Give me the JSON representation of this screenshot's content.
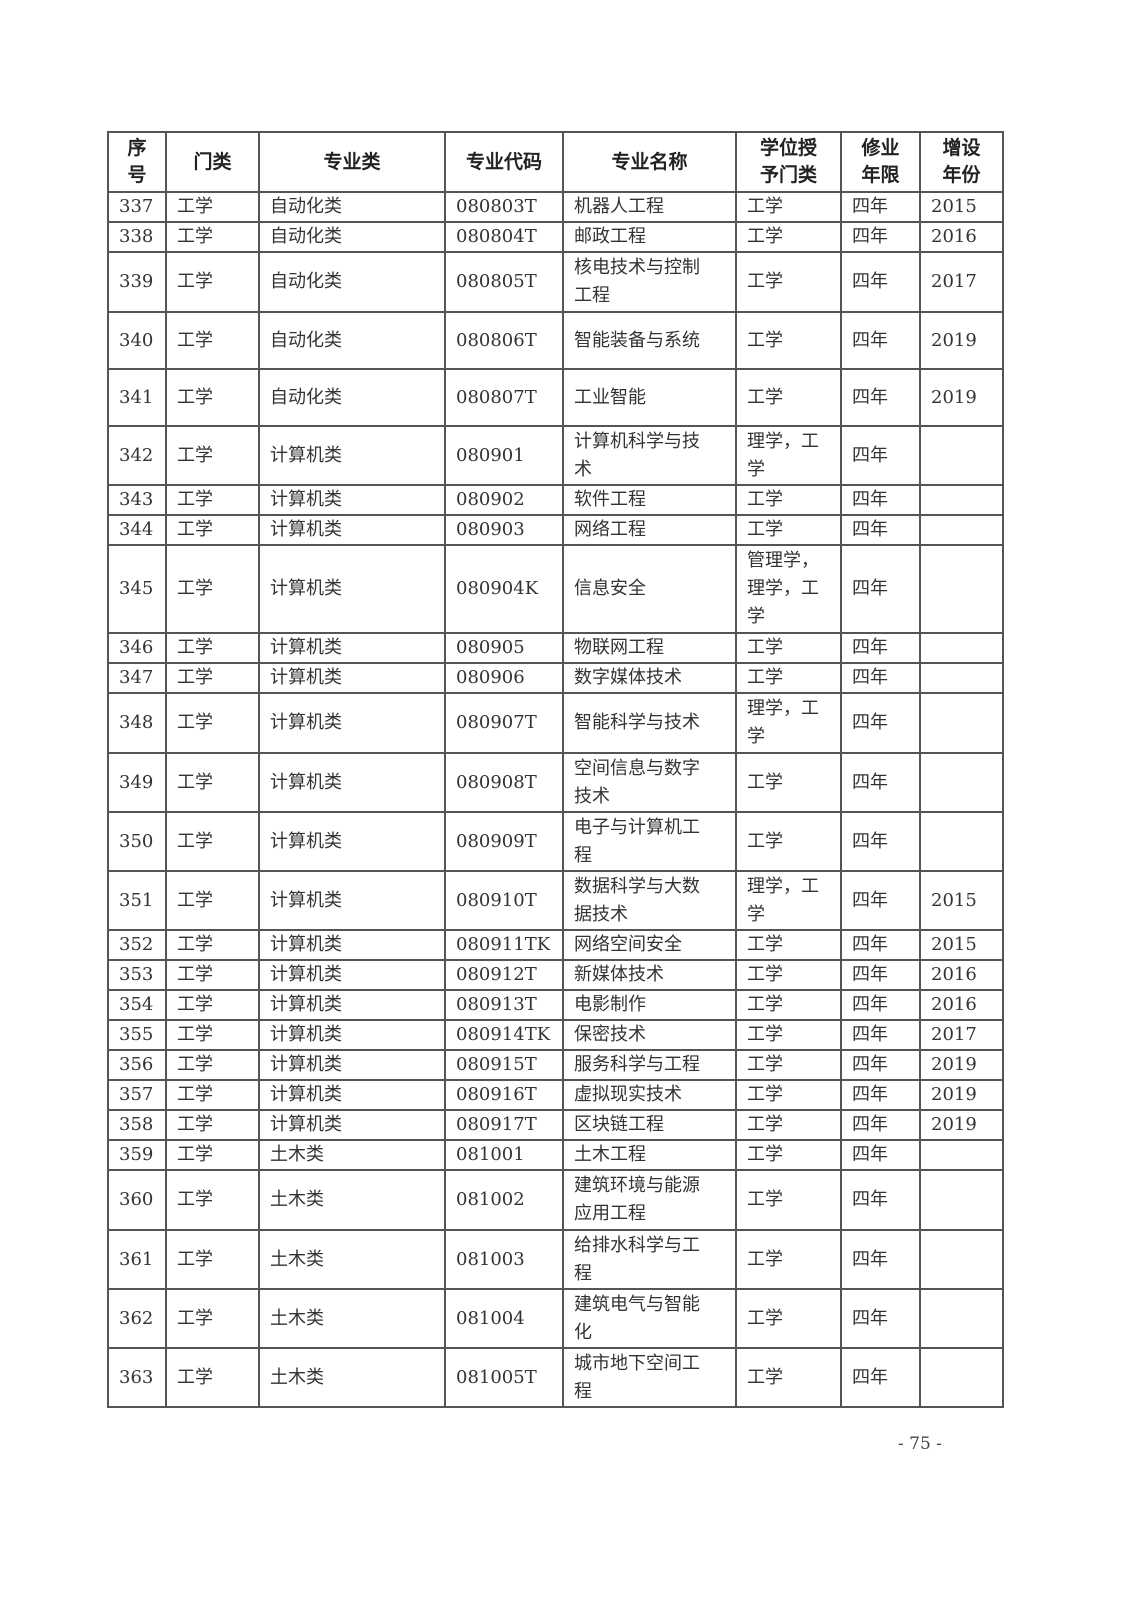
{
  "headers": [
    "序\n号",
    "门类",
    "专业类",
    "专业代码",
    "专业名称",
    "学位授\n予门类",
    "修业\n年限",
    "增设\n年份"
  ],
  "rows": [
    [
      "337",
      "工学",
      "自动化类",
      "080803T",
      "机器人工程",
      "工学",
      "四年",
      "2015"
    ],
    [
      "338",
      "工学",
      "自动化类",
      "080804T",
      "邮政工程",
      "工学",
      "四年",
      "2016"
    ],
    [
      "339",
      "工学",
      "自动化类",
      "080805T",
      "核电技术与控制\n工程",
      "工学",
      "四年",
      "2017"
    ],
    [
      "340",
      "工学",
      "自动化类",
      "080806T",
      "智能装备与系统",
      "工学",
      "四年",
      "2019"
    ],
    [
      "341",
      "工学",
      "自动化类",
      "080807T",
      "工业智能",
      "工学",
      "四年",
      "2019"
    ],
    [
      "342",
      "工学",
      "计算机类",
      "080901",
      "计算机科学与技\n术",
      "理学，工\n学",
      "四年",
      ""
    ],
    [
      "343",
      "工学",
      "计算机类",
      "080902",
      "软件工程",
      "工学",
      "四年",
      ""
    ],
    [
      "344",
      "工学",
      "计算机类",
      "080903",
      "网络工程",
      "工学",
      "四年",
      ""
    ],
    [
      "345",
      "工学",
      "计算机类",
      "080904K",
      "信息安全",
      "管理学，\n理学，工\n学",
      "四年",
      ""
    ],
    [
      "346",
      "工学",
      "计算机类",
      "080905",
      "物联网工程",
      "工学",
      "四年",
      ""
    ],
    [
      "347",
      "工学",
      "计算机类",
      "080906",
      "数字媒体技术",
      "工学",
      "四年",
      ""
    ],
    [
      "348",
      "工学",
      "计算机类",
      "080907T",
      "智能科学与技术",
      "理学，工\n学",
      "四年",
      ""
    ],
    [
      "349",
      "工学",
      "计算机类",
      "080908T",
      "空间信息与数字\n技术",
      "工学",
      "四年",
      ""
    ],
    [
      "350",
      "工学",
      "计算机类",
      "080909T",
      "电子与计算机工\n程",
      "工学",
      "四年",
      ""
    ],
    [
      "351",
      "工学",
      "计算机类",
      "080910T",
      "数据科学与大数\n据技术",
      "理学，工\n学",
      "四年",
      "2015"
    ],
    [
      "352",
      "工学",
      "计算机类",
      "080911TK",
      "网络空间安全",
      "工学",
      "四年",
      "2015"
    ],
    [
      "353",
      "工学",
      "计算机类",
      "080912T",
      "新媒体技术",
      "工学",
      "四年",
      "2016"
    ],
    [
      "354",
      "工学",
      "计算机类",
      "080913T",
      "电影制作",
      "工学",
      "四年",
      "2016"
    ],
    [
      "355",
      "工学",
      "计算机类",
      "080914TK",
      "保密技术",
      "工学",
      "四年",
      "2017"
    ],
    [
      "356",
      "工学",
      "计算机类",
      "080915T",
      "服务科学与工程",
      "工学",
      "四年",
      "2019"
    ],
    [
      "357",
      "工学",
      "计算机类",
      "080916T",
      "虚拟现实技术",
      "工学",
      "四年",
      "2019"
    ],
    [
      "358",
      "工学",
      "计算机类",
      "080917T",
      "区块链工程",
      "工学",
      "四年",
      "2019"
    ],
    [
      "359",
      "工学",
      "土木类",
      "081001",
      "土木工程",
      "工学",
      "四年",
      ""
    ],
    [
      "360",
      "工学",
      "土木类",
      "081002",
      "建筑环境与能源\n应用工程",
      "工学",
      "四年",
      ""
    ],
    [
      "361",
      "工学",
      "土木类",
      "081003",
      "给排水科学与工\n程",
      "工学",
      "四年",
      ""
    ],
    [
      "362",
      "工学",
      "土木类",
      "081004",
      "建筑电气与智能\n化",
      "工学",
      "四年",
      ""
    ],
    [
      "363",
      "工学",
      "土木类",
      "081005T",
      "城市地下空间工\n程",
      "工学",
      "四年",
      ""
    ]
  ],
  "page_number": "- 75 -"
}
